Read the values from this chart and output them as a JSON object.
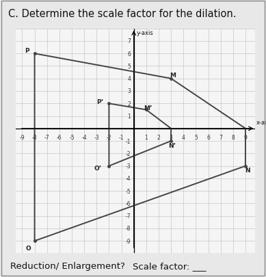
{
  "title": "C. Determine the scale factor for the dilation.",
  "title_fontsize": 10.5,
  "xlabel": "x-axis",
  "ylabel": "y-axis",
  "xlim": [
    -9.5,
    9.8
  ],
  "ylim": [
    -10,
    8
  ],
  "xtick_vals": [
    -9,
    -8,
    -7,
    -6,
    -5,
    -4,
    -3,
    -2,
    -1,
    1,
    2,
    3,
    4,
    5,
    6,
    7,
    8,
    9
  ],
  "ytick_vals": [
    -9,
    -8,
    -7,
    -6,
    -5,
    -4,
    -3,
    -2,
    -1,
    1,
    2,
    3,
    4,
    5,
    6,
    7
  ],
  "grid_color": "#bbbbbb",
  "bg_color": "#e8e8e8",
  "plot_bg": "#f5f5f5",
  "large_poly_x": [
    -8,
    3,
    9,
    9,
    -8,
    -8
  ],
  "large_poly_y": [
    6,
    4,
    0,
    -3,
    -9,
    6
  ],
  "small_poly_x": [
    -2,
    1,
    3,
    3,
    -2,
    -2
  ],
  "small_poly_y": [
    2,
    1.5,
    0,
    -1,
    -3,
    2
  ],
  "poly_color": "#444444",
  "large_pts": [
    [
      -8,
      6
    ],
    [
      3,
      4
    ],
    [
      9,
      -3
    ],
    [
      -8,
      -9
    ]
  ],
  "large_names": [
    "P",
    "M",
    "N",
    "O"
  ],
  "large_offsets": [
    [
      -0.6,
      0.25
    ],
    [
      0.15,
      0.3
    ],
    [
      0.15,
      -0.35
    ],
    [
      -0.5,
      -0.55
    ]
  ],
  "small_pts": [
    [
      -2,
      2
    ],
    [
      1,
      1.5
    ],
    [
      3,
      -1
    ],
    [
      -2,
      -3
    ]
  ],
  "small_names": [
    "P’",
    "M’",
    "N’",
    "O’"
  ],
  "small_offsets": [
    [
      -0.75,
      0.15
    ],
    [
      0.15,
      0.15
    ],
    [
      0.1,
      -0.35
    ],
    [
      -0.9,
      -0.15
    ]
  ],
  "label_fontsize": 6.5,
  "tick_fontsize": 5.5,
  "footer1": "Reduction/ Enlargement?",
  "footer2": "Scale factor: ___",
  "footer_fontsize": 9.5
}
